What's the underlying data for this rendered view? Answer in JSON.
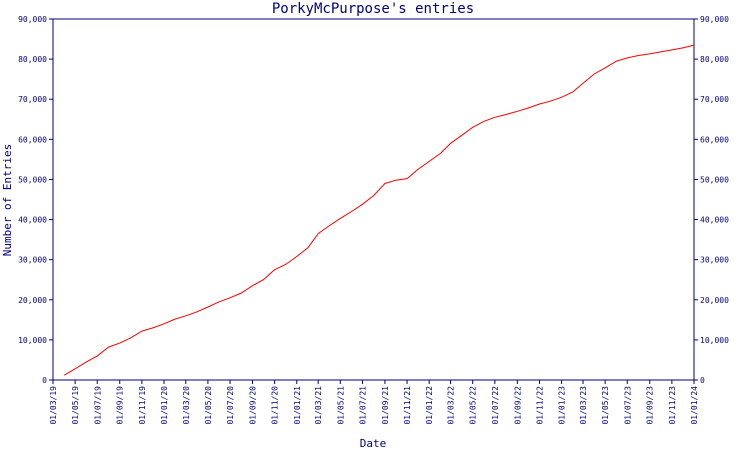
{
  "chart_data": {
    "type": "line",
    "title": "PorkyMcPurpose's entries",
    "xlabel": "Date",
    "ylabel": "Number of Entries",
    "ylim": [
      0,
      90000
    ],
    "xlim": [
      "2019-03-01",
      "2024-01-01"
    ],
    "y_ticks": [
      0,
      10000,
      20000,
      30000,
      40000,
      50000,
      60000,
      70000,
      80000,
      90000
    ],
    "y_tick_labels": [
      "0",
      "10,000",
      "20,000",
      "30,000",
      "40,000",
      "50,000",
      "60,000",
      "70,000",
      "80,000",
      "90,000"
    ],
    "x_ticks": [
      "2019-03-01",
      "2019-05-01",
      "2019-07-01",
      "2019-09-01",
      "2019-11-01",
      "2020-01-01",
      "2020-03-01",
      "2020-05-01",
      "2020-07-01",
      "2020-09-01",
      "2020-11-01",
      "2021-01-01",
      "2021-03-01",
      "2021-05-01",
      "2021-07-01",
      "2021-09-01",
      "2021-11-01",
      "2022-01-01",
      "2022-03-01",
      "2022-05-01",
      "2022-07-01",
      "2022-09-01",
      "2022-11-01",
      "2023-01-01",
      "2023-03-01",
      "2023-05-01",
      "2023-07-01",
      "2023-09-01",
      "2023-11-01",
      "2024-01-01"
    ],
    "x_tick_labels": [
      "01/03/19",
      "01/05/19",
      "01/07/19",
      "01/09/19",
      "01/11/19",
      "01/01/20",
      "01/03/20",
      "01/05/20",
      "01/07/20",
      "01/09/20",
      "01/11/20",
      "01/01/21",
      "01/03/21",
      "01/05/21",
      "01/07/21",
      "01/09/21",
      "01/11/21",
      "01/01/22",
      "01/03/22",
      "01/05/22",
      "01/07/22",
      "01/09/22",
      "01/11/22",
      "01/01/23",
      "01/03/23",
      "01/05/23",
      "01/07/23",
      "01/09/23",
      "01/11/23",
      "01/01/24"
    ],
    "grid": false,
    "y_axis_both_sides": true,
    "series": [
      {
        "color": "#ff0000",
        "points": [
          [
            "2019-04-01",
            1200
          ],
          [
            "2019-05-01",
            2800
          ],
          [
            "2019-06-01",
            4500
          ],
          [
            "2019-07-01",
            6000
          ],
          [
            "2019-08-01",
            8200
          ],
          [
            "2019-09-01",
            9200
          ],
          [
            "2019-10-01",
            10500
          ],
          [
            "2019-11-01",
            12200
          ],
          [
            "2019-12-01",
            13000
          ],
          [
            "2020-01-01",
            14000
          ],
          [
            "2020-02-01",
            15200
          ],
          [
            "2020-03-01",
            16000
          ],
          [
            "2020-04-01",
            17000
          ],
          [
            "2020-05-01",
            18200
          ],
          [
            "2020-06-01",
            19500
          ],
          [
            "2020-07-01",
            20500
          ],
          [
            "2020-08-01",
            21700
          ],
          [
            "2020-09-01",
            23500
          ],
          [
            "2020-10-01",
            25000
          ],
          [
            "2020-11-01",
            27500
          ],
          [
            "2020-12-01",
            28800
          ],
          [
            "2021-01-01",
            30800
          ],
          [
            "2021-02-01",
            33000
          ],
          [
            "2021-03-01",
            36500
          ],
          [
            "2021-04-01",
            38500
          ],
          [
            "2021-05-01",
            40300
          ],
          [
            "2021-06-01",
            42000
          ],
          [
            "2021-07-01",
            43800
          ],
          [
            "2021-08-01",
            46000
          ],
          [
            "2021-09-01",
            49000
          ],
          [
            "2021-10-01",
            49800
          ],
          [
            "2021-11-01",
            50200
          ],
          [
            "2021-12-01",
            52500
          ],
          [
            "2022-01-01",
            54500
          ],
          [
            "2022-02-01",
            56500
          ],
          [
            "2022-03-01",
            59000
          ],
          [
            "2022-04-01",
            61000
          ],
          [
            "2022-05-01",
            63000
          ],
          [
            "2022-06-01",
            64500
          ],
          [
            "2022-07-01",
            65500
          ],
          [
            "2022-08-01",
            66200
          ],
          [
            "2022-09-01",
            67000
          ],
          [
            "2022-10-01",
            67800
          ],
          [
            "2022-11-01",
            68800
          ],
          [
            "2022-12-01",
            69500
          ],
          [
            "2023-01-01",
            70500
          ],
          [
            "2023-02-01",
            71800
          ],
          [
            "2023-03-01",
            74000
          ],
          [
            "2023-04-01",
            76300
          ],
          [
            "2023-05-01",
            77800
          ],
          [
            "2023-06-01",
            79500
          ],
          [
            "2023-07-01",
            80300
          ],
          [
            "2023-08-01",
            80900
          ],
          [
            "2023-09-01",
            81300
          ],
          [
            "2023-10-01",
            81800
          ],
          [
            "2023-11-01",
            82300
          ],
          [
            "2023-12-01",
            82800
          ],
          [
            "2024-01-01",
            83500
          ]
        ]
      }
    ]
  },
  "colors": {
    "axis": "#000080",
    "line": "#ff0000",
    "background": "#ffffff"
  }
}
